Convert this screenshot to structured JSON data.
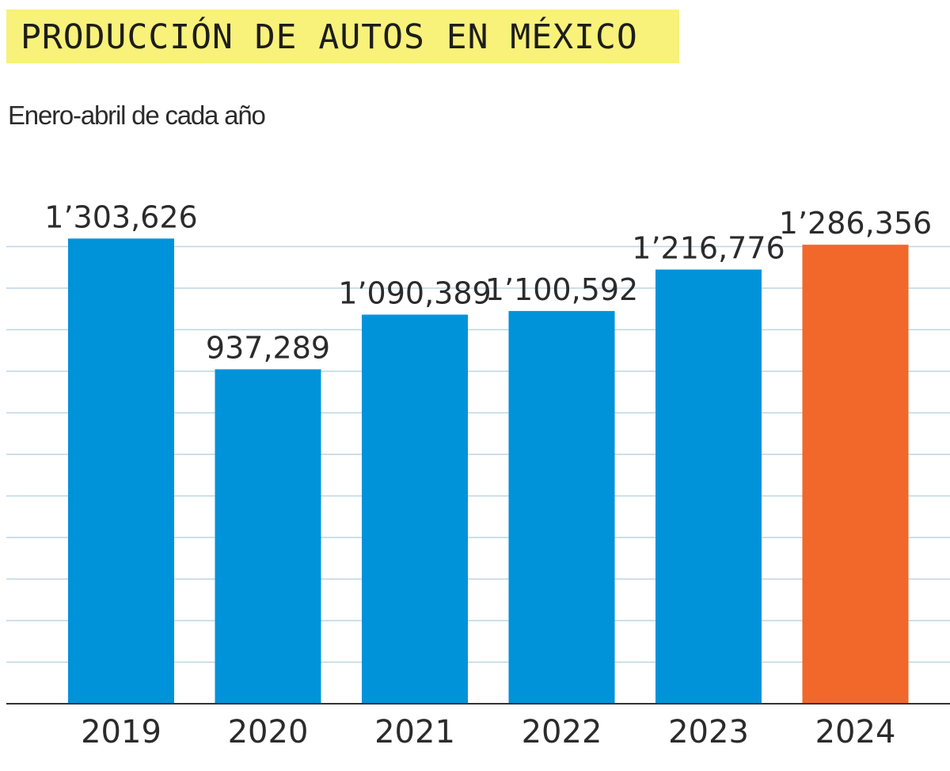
{
  "header": {
    "title": "PRODUCCIÓN DE AUTOS EN MÉXICO",
    "subtitle": "Enero-abril de cada año"
  },
  "chart_data": {
    "type": "bar",
    "title": "PRODUCCIÓN DE AUTOS EN MÉXICO",
    "subtitle": "Enero-abril de cada año",
    "xlabel": "",
    "ylabel": "",
    "categories": [
      "2019",
      "2020",
      "2021",
      "2022",
      "2023",
      "2024"
    ],
    "values": [
      1303626,
      937289,
      1090389,
      1100592,
      1216776,
      1286356
    ],
    "value_labels": [
      "1’303,626",
      "937,289",
      "1’090,389",
      "1’100,592",
      "1’216,776",
      "1’286,356"
    ],
    "ylim": [
      0,
      1300000
    ],
    "grid": true,
    "legend": "none",
    "colors": {
      "default": "#0093da",
      "highlight": "#f2672a",
      "highlight_category": "2024",
      "grid": "#bcd6e2",
      "axis": "#333333"
    }
  }
}
